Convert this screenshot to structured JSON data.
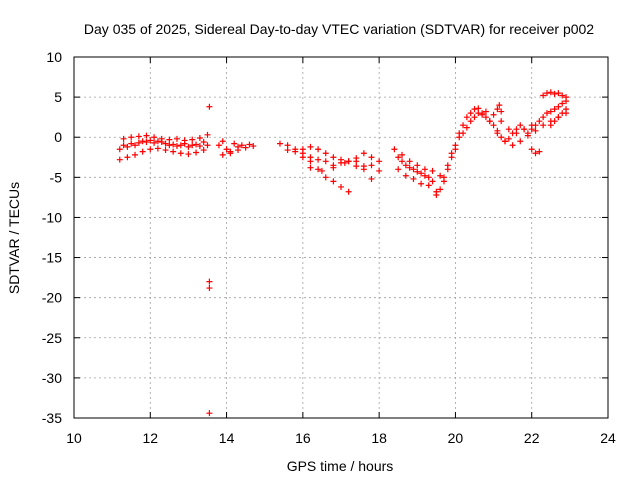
{
  "chart_data": {
    "type": "scatter",
    "title": "Day 035 of 2025, Sidereal Day-to-day VTEC variation (SDTVAR) for receiver p002",
    "xlabel": "GPS time / hours",
    "ylabel": "SDTVAR / TECUs",
    "xlim": [
      10,
      24
    ],
    "ylim": [
      -35,
      10
    ],
    "xticks": [
      "10",
      "12",
      "14",
      "16",
      "18",
      "20",
      "22",
      "24"
    ],
    "yticks": [
      "10",
      "5",
      "0",
      "-5",
      "-10",
      "-15",
      "-20",
      "-25",
      "-30",
      "-35"
    ],
    "grid": true,
    "marker": "+",
    "color": "#ff0000",
    "series": [
      {
        "name": "SDTVAR",
        "x": [
          11.2,
          11.3,
          11.4,
          11.5,
          11.6,
          11.7,
          11.8,
          11.9,
          12.0,
          12.1,
          12.2,
          12.3,
          12.4,
          12.5,
          12.6,
          12.7,
          12.8,
          12.9,
          13.0,
          13.1,
          13.2,
          13.3,
          13.4,
          13.5,
          11.2,
          11.4,
          11.6,
          11.8,
          12.0,
          12.2,
          12.4,
          12.6,
          12.8,
          13.0,
          13.2,
          13.4,
          11.3,
          11.5,
          11.7,
          11.9,
          12.1,
          12.3,
          12.5,
          12.7,
          12.9,
          13.1,
          13.3,
          13.5,
          13.55,
          13.55,
          13.55,
          13.55,
          13.8,
          13.9,
          14.0,
          14.1,
          14.2,
          14.3,
          14.4,
          14.5,
          14.6,
          14.7,
          13.9,
          14.1,
          14.3,
          15.4,
          15.6,
          15.8,
          16.0,
          16.2,
          16.4,
          16.6,
          16.8,
          17.0,
          17.2,
          17.4,
          17.6,
          17.8,
          18.0,
          15.6,
          15.8,
          16.0,
          16.2,
          16.4,
          16.6,
          16.8,
          17.0,
          17.2,
          17.4,
          17.6,
          17.8,
          18.0,
          16.0,
          16.2,
          16.4,
          16.6,
          16.8,
          17.0,
          17.2,
          16.2,
          16.5,
          16.8,
          17.1,
          17.4,
          17.6,
          17.8,
          18.4,
          18.5,
          18.6,
          18.7,
          18.8,
          18.9,
          19.0,
          19.1,
          19.2,
          19.3,
          19.4,
          19.5,
          19.6,
          19.7,
          19.8,
          19.9,
          20.0,
          20.1,
          20.2,
          20.3,
          20.4,
          20.5,
          20.6,
          20.7,
          20.8,
          20.9,
          21.0,
          21.1,
          21.2,
          21.3,
          21.4,
          21.5,
          21.6,
          21.7,
          21.8,
          21.9,
          22.0,
          22.1,
          22.2,
          22.3,
          22.4,
          22.5,
          22.6,
          22.7,
          22.8,
          22.9,
          18.5,
          18.7,
          18.9,
          19.1,
          19.3,
          19.5,
          19.7,
          19.9,
          20.1,
          20.3,
          20.5,
          20.7,
          20.9,
          21.1,
          21.3,
          21.5,
          21.7,
          21.9,
          22.1,
          22.3,
          22.5,
          22.7,
          22.9,
          18.6,
          18.8,
          19.0,
          19.2,
          19.4,
          19.6,
          19.8,
          20.0,
          20.2,
          20.4,
          20.6,
          20.8,
          21.0,
          21.2,
          21.4,
          21.6,
          21.8,
          22.0,
          22.0,
          22.1,
          22.2,
          22.3,
          22.4,
          22.5,
          22.6,
          22.7,
          22.8,
          22.9,
          21.1,
          21.15,
          21.2,
          22.5,
          22.6,
          22.7,
          22.8,
          22.9
        ],
        "y": [
          -1.5,
          -1.0,
          -1.2,
          -0.8,
          -1.0,
          -0.7,
          -0.5,
          -0.6,
          -0.4,
          -0.7,
          -0.5,
          -0.6,
          -0.8,
          -1.0,
          -0.9,
          -1.1,
          -1.0,
          -0.8,
          -1.2,
          -1.0,
          -0.9,
          -1.1,
          -0.6,
          -1.0,
          -2.8,
          -2.5,
          -2.2,
          -1.8,
          -1.5,
          -1.4,
          -1.6,
          -1.8,
          -2.0,
          -2.1,
          -1.9,
          -1.6,
          -0.2,
          0.0,
          0.1,
          0.2,
          0.0,
          -0.2,
          -0.3,
          -0.2,
          -0.4,
          -0.3,
          -0.1,
          0.3,
          3.8,
          -18.0,
          -18.8,
          -34.4,
          -1.0,
          -0.5,
          -1.5,
          -2.0,
          -0.8,
          -1.2,
          -1.0,
          -1.3,
          -0.9,
          -1.1,
          -2.2,
          -1.8,
          -1.6,
          -0.8,
          -1.0,
          -1.5,
          -2.0,
          -2.5,
          -2.8,
          -3.0,
          -3.5,
          -3.2,
          -3.0,
          -3.6,
          -4.0,
          -3.5,
          -4.2,
          -1.6,
          -1.8,
          -1.5,
          -1.2,
          -1.5,
          -2.0,
          -2.5,
          -2.8,
          -3.0,
          -2.6,
          -2.0,
          -2.5,
          -3.0,
          -2.5,
          -3.0,
          -4.0,
          -5.0,
          -5.5,
          -6.2,
          -6.8,
          -3.8,
          -4.2,
          -3.8,
          -3.2,
          -3.0,
          -3.6,
          -5.2,
          -1.5,
          -2.5,
          -3.0,
          -3.5,
          -3.8,
          -4.0,
          -4.3,
          -4.5,
          -4.8,
          -5.0,
          -5.5,
          -6.8,
          -6.5,
          -5.5,
          -4.0,
          -2.5,
          -1.0,
          0.5,
          1.5,
          2.5,
          3.0,
          3.5,
          3.6,
          3.0,
          2.5,
          2.0,
          1.5,
          0.5,
          0.0,
          -0.5,
          -0.2,
          0.5,
          1.0,
          1.5,
          1.0,
          0.5,
          1.0,
          1.5,
          2.0,
          2.5,
          3.0,
          3.2,
          3.5,
          3.8,
          4.2,
          4.5,
          -4.0,
          -4.8,
          -5.2,
          -5.8,
          -6.0,
          -7.2,
          -5.0,
          -2.0,
          0.0,
          1.2,
          2.5,
          2.8,
          2.0,
          0.8,
          -0.5,
          -1.0,
          -0.5,
          0.2,
          0.8,
          1.5,
          2.0,
          2.5,
          3.0,
          -2.2,
          -3.0,
          -3.5,
          -4.0,
          -4.2,
          -4.8,
          -3.5,
          -1.5,
          0.5,
          2.0,
          3.0,
          3.2,
          2.8,
          2.0,
          1.0,
          0.5,
          1.0,
          1.5,
          -1.5,
          -2.0,
          -1.8,
          5.2,
          5.5,
          5.6,
          5.4,
          5.5,
          5.2,
          5.0,
          3.5,
          4.0,
          3.2,
          1.5,
          2.0,
          2.5,
          3.0,
          3.5
        ]
      }
    ]
  }
}
